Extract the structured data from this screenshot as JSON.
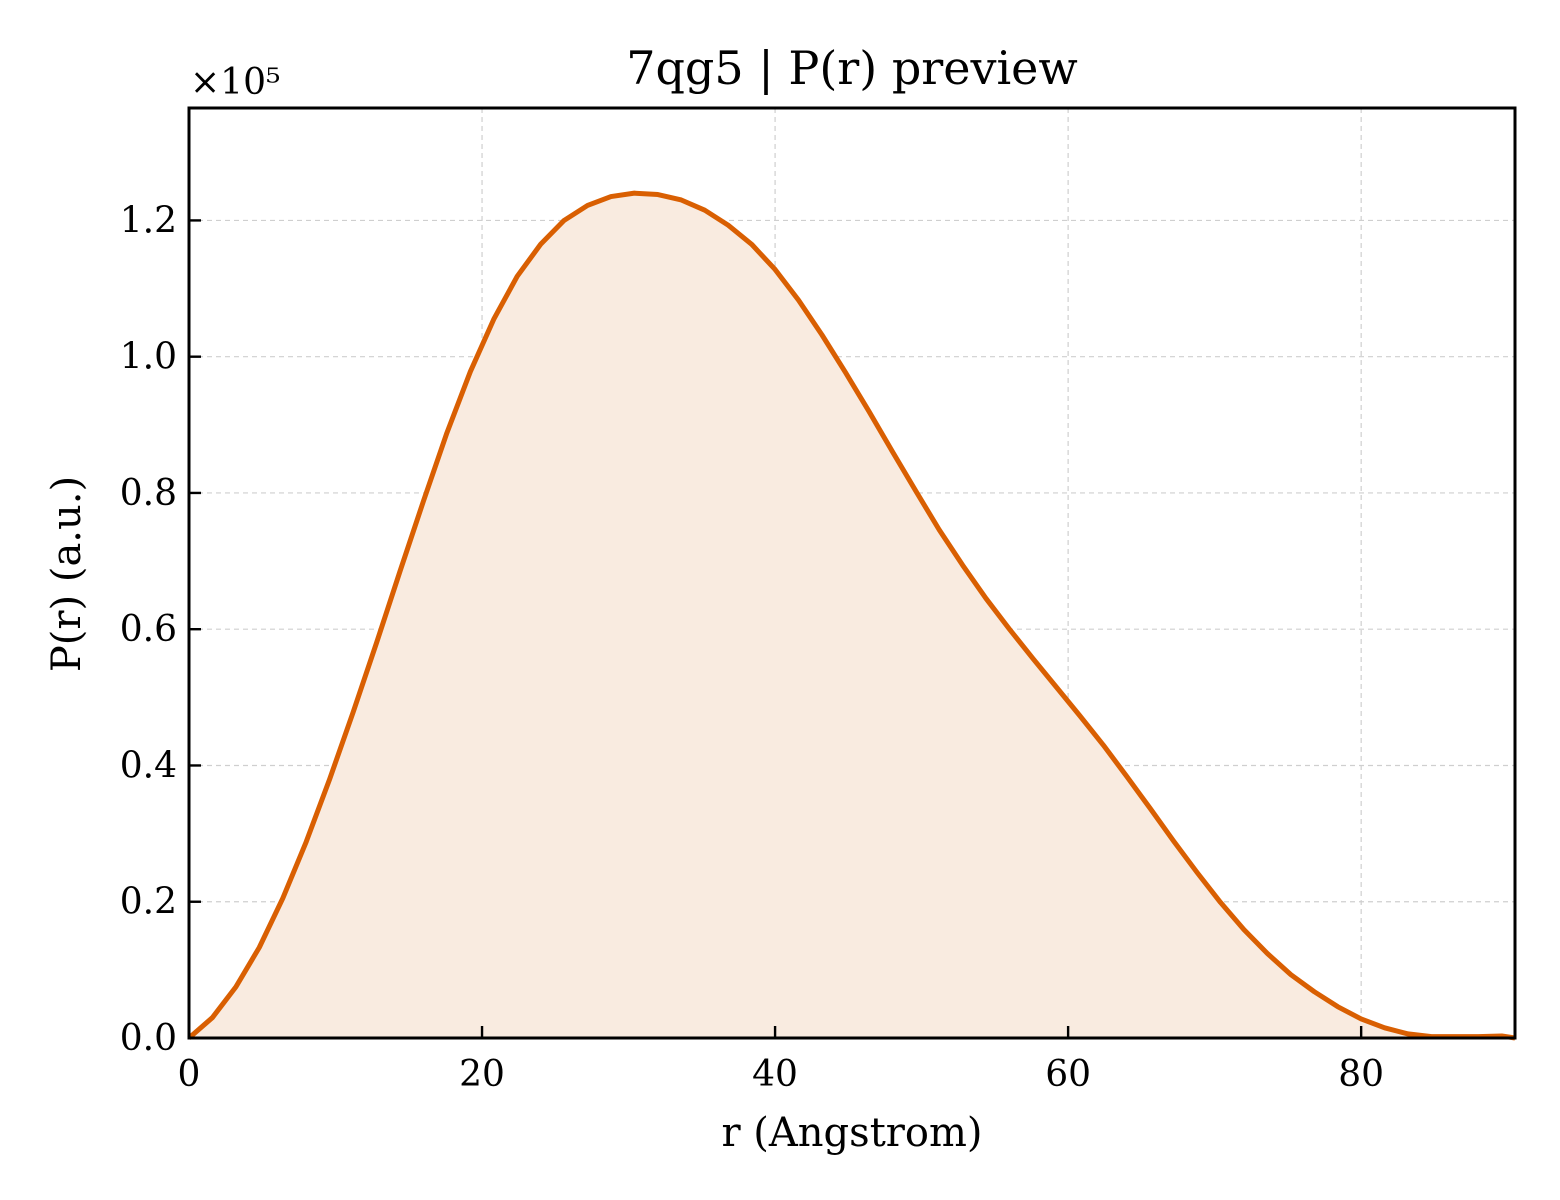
{
  "chart_data": {
    "type": "area",
    "title": "7qg5 | P(r) preview",
    "xlabel": "r (Angstrom)",
    "ylabel": "P(r) (a.u.)",
    "y_offset_label": "×10⁵",
    "y_scale": 100000,
    "xlim": [
      0,
      90.5
    ],
    "ylim": [
      0,
      1.365
    ],
    "x_ticks": [
      0,
      20,
      40,
      60,
      80
    ],
    "x_tick_labels": [
      "0",
      "20",
      "40",
      "60",
      "80"
    ],
    "y_ticks": [
      0.0,
      0.2,
      0.4,
      0.6,
      0.8,
      1.0,
      1.2
    ],
    "y_tick_labels": [
      "0.0",
      "0.2",
      "0.4",
      "0.6",
      "0.8",
      "1.0",
      "1.2"
    ],
    "grid": true,
    "colors": {
      "line": "#d95f02",
      "fill": "#f9ebe0"
    },
    "series": [
      {
        "x": [
          0,
          1.6,
          3.2,
          4.8,
          6.4,
          8.0,
          9.6,
          11.2,
          12.8,
          14.4,
          16.0,
          17.6,
          19.2,
          20.8,
          22.4,
          24.0,
          25.6,
          27.2,
          28.8,
          30.4,
          32.0,
          33.6,
          35.2,
          36.8,
          38.4,
          40.0,
          41.6,
          43.2,
          44.8,
          46.4,
          48.0,
          49.6,
          51.2,
          52.8,
          54.4,
          56.0,
          57.6,
          59.2,
          60.8,
          62.4,
          64.0,
          65.6,
          67.2,
          68.8,
          70.4,
          72.0,
          73.6,
          75.2,
          76.8,
          78.4,
          80.0,
          81.6,
          83.2,
          84.8,
          86.4,
          88.0,
          89.6,
          90.5
        ],
        "y": [
          0.0,
          0.03,
          0.075,
          0.133,
          0.205,
          0.288,
          0.38,
          0.478,
          0.58,
          0.685,
          0.788,
          0.888,
          0.978,
          1.055,
          1.118,
          1.165,
          1.2,
          1.222,
          1.235,
          1.24,
          1.238,
          1.23,
          1.215,
          1.193,
          1.165,
          1.128,
          1.083,
          1.032,
          0.977,
          0.92,
          0.861,
          0.803,
          0.746,
          0.694,
          0.645,
          0.6,
          0.557,
          0.515,
          0.473,
          0.43,
          0.384,
          0.337,
          0.289,
          0.243,
          0.199,
          0.159,
          0.124,
          0.093,
          0.068,
          0.046,
          0.028,
          0.015,
          0.006,
          0.002,
          0.002,
          0.002,
          0.003,
          0.0
        ]
      }
    ]
  }
}
